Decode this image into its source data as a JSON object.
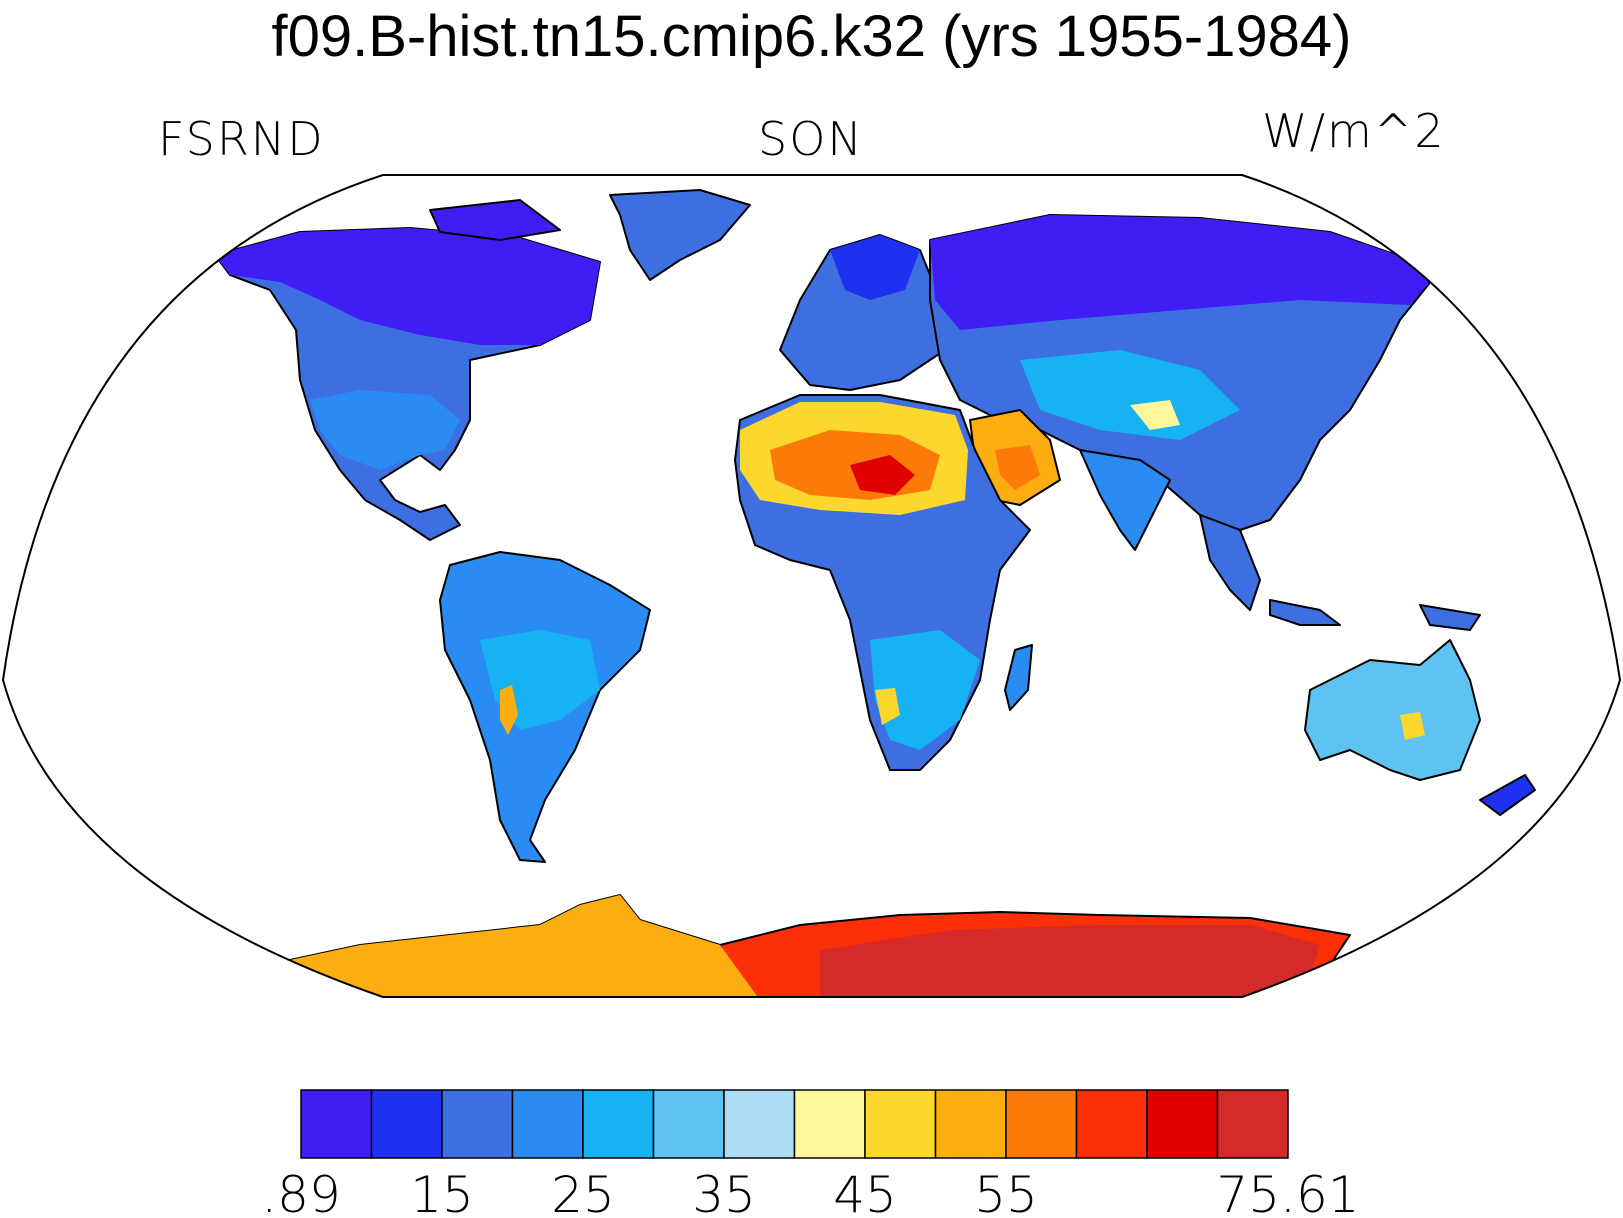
{
  "title": "f09.B-hist.tn15.cmip6.k32 (yrs 1955-1984)",
  "left_label": "FSRND",
  "center_label": "SON",
  "right_label": "W/m^2",
  "colorbar": {
    "colors": [
      "#3f1ef5",
      "#1e30f0",
      "#3e6fe0",
      "#2a8cf2",
      "#16b2f4",
      "#5fc3f2",
      "#acdbf3",
      "#fdf69a",
      "#fcd82f",
      "#fcad0f",
      "#fb7a08",
      "#fb2f08",
      "#e00000",
      "#d42a2a"
    ],
    "tick_labels": [
      ".89",
      "15",
      "25",
      "35",
      "45",
      "55",
      "75.61"
    ],
    "tick_boundary_index": [
      0,
      2,
      4,
      6,
      8,
      10,
      14
    ]
  },
  "colors": {
    "ocean": "#ffffff",
    "coastline": "#000000",
    "frame": "#000000"
  }
}
